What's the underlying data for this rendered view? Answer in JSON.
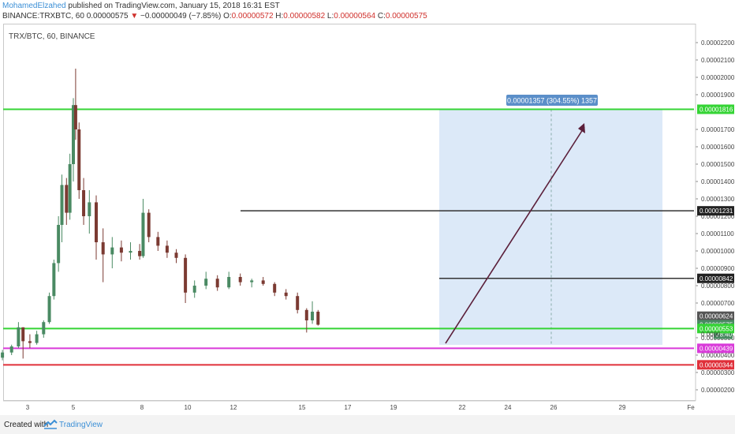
{
  "header": {
    "author": "MohamedElzahed",
    "published": "published on TradingView.com, January 15, 2018 16:31 EST",
    "ticker_line": "BINANCE:TRXBTC, 60",
    "last": "0.00000575",
    "change": "−0.00000049 (−7.85%)",
    "o_label": "O:",
    "o_value": "0.00000572",
    "h_label": "H:",
    "h_value": "0.00000582",
    "l_label": "L:",
    "l_value": "0.00000564",
    "c_label": "C:",
    "c_value": "0.00000575"
  },
  "symbol_label": "TRX/BTC, 60, BINANCE",
  "footer": {
    "created_with": "Created with",
    "brand": "TradingView"
  },
  "colors": {
    "up": "#4a8a63",
    "down": "#7b3a32",
    "green_line": "#35d435",
    "magenta_line": "#d93ad9",
    "red_line": "#e0303a",
    "dark_line": "#333333",
    "projection_fill": "#dce9f8",
    "arrow": "#5b1f3a"
  },
  "chart_data": {
    "type": "candlestick",
    "x_ticks": [
      "3",
      "5",
      "8",
      "10",
      "12",
      "15",
      "17",
      "19",
      "22",
      "24",
      "26",
      "29",
      "Fe"
    ],
    "y_ticks": [
      "0.00002200",
      "0.00002100",
      "0.00002000",
      "0.00001900",
      "0.00001700",
      "0.00001600",
      "0.00001500",
      "0.00001400",
      "0.00001300",
      "0.00001200",
      "0.00001100",
      "0.00001000",
      "0.00000900",
      "0.00000800",
      "0.00000700",
      "0.00000500",
      "0.00000400",
      "0.00000300",
      "0.00000200"
    ],
    "ylim": [
      1.5e-06,
      2.3e-06
    ],
    "price_tags": [
      {
        "value": "0.00001816",
        "color": "#35d435"
      },
      {
        "value": "0.00001231",
        "color": "#222222"
      },
      {
        "value": "0.00000842",
        "color": "#222222"
      },
      {
        "value": "0.00000624",
        "color": "#555555"
      },
      {
        "value": "0.00000575",
        "color": "#4a8a63"
      },
      {
        "value": "28:40",
        "color": "#4a8a63"
      },
      {
        "value": "0.00000553",
        "color": "#35d435"
      },
      {
        "value": "0.00000439",
        "color": "#d93ad9"
      },
      {
        "value": "0.00000344",
        "color": "#e0303a"
      }
    ],
    "partial_tick": "0.0000",
    "levels": [
      {
        "name": "resistance-top",
        "price": 1.816e-05,
        "color": "#35d435"
      },
      {
        "name": "resistance-mid",
        "price": 1.231e-05,
        "color": "#333333"
      },
      {
        "name": "resistance-low",
        "price": 8.42e-06,
        "color": "#333333"
      },
      {
        "name": "support-green",
        "price": 5.53e-06,
        "color": "#35d435"
      },
      {
        "name": "support-magenta",
        "price": 4.39e-06,
        "color": "#d93ad9"
      },
      {
        "name": "support-red",
        "price": 3.44e-06,
        "color": "#e0303a"
      }
    ],
    "measure_label": "0.00001357 (304.55%) 1357",
    "series": [
      {
        "day": 1.35,
        "o": 3.62e-06,
        "h": 3.92e-06,
        "l": 3.56e-06,
        "c": 3.85e-06
      },
      {
        "day": 1.9,
        "o": 3.85e-06,
        "h": 4.3e-06,
        "l": 3.7e-06,
        "c": 4.15e-06
      },
      {
        "day": 2.3,
        "o": 4.15e-06,
        "h": 4.6e-06,
        "l": 4e-06,
        "c": 4.5e-06
      },
      {
        "day": 2.6,
        "o": 4.5e-06,
        "h": 5.9e-06,
        "l": 4.4e-06,
        "c": 5.6e-06
      },
      {
        "day": 2.8,
        "o": 5.6e-06,
        "h": 5.6e-06,
        "l": 3.8e-06,
        "c": 4.8e-06
      },
      {
        "day": 3.1,
        "o": 4.8e-06,
        "h": 5.2e-06,
        "l": 4.4e-06,
        "c": 4.7e-06
      },
      {
        "day": 3.4,
        "o": 4.7e-06,
        "h": 5.4e-06,
        "l": 4.6e-06,
        "c": 5.2e-06
      },
      {
        "day": 3.7,
        "o": 5.2e-06,
        "h": 6e-06,
        "l": 5e-06,
        "c": 5.9e-06
      },
      {
        "day": 3.95,
        "o": 5.9e-06,
        "h": 7.6e-06,
        "l": 5.8e-06,
        "c": 7.4e-06
      },
      {
        "day": 4.15,
        "o": 7.4e-06,
        "h": 9.5e-06,
        "l": 7.2e-06,
        "c": 9.3e-06
      },
      {
        "day": 4.35,
        "o": 9.3e-06,
        "h": 1.2e-05,
        "l": 8.8e-06,
        "c": 1.15e-05
      },
      {
        "day": 4.5,
        "o": 1.15e-05,
        "h": 1.44e-05,
        "l": 1.05e-05,
        "c": 1.38e-05
      },
      {
        "day": 4.7,
        "o": 1.38e-05,
        "h": 1.42e-05,
        "l": 1.15e-05,
        "c": 1.22e-05
      },
      {
        "day": 4.85,
        "o": 1.22e-05,
        "h": 1.56e-05,
        "l": 1.18e-05,
        "c": 1.5e-05
      },
      {
        "day": 5.0,
        "o": 1.5e-05,
        "h": 1.88e-05,
        "l": 1.4e-05,
        "c": 1.84e-05
      },
      {
        "day": 5.1,
        "o": 1.84e-05,
        "h": 2.05e-05,
        "l": 1.64e-05,
        "c": 1.7e-05
      },
      {
        "day": 5.25,
        "o": 1.7e-05,
        "h": 1.74e-05,
        "l": 1.3e-05,
        "c": 1.35e-05
      },
      {
        "day": 5.45,
        "o": 1.35e-05,
        "h": 1.42e-05,
        "l": 1.15e-05,
        "c": 1.2e-05
      },
      {
        "day": 5.7,
        "o": 1.2e-05,
        "h": 1.35e-05,
        "l": 1.1e-05,
        "c": 1.28e-05
      },
      {
        "day": 6.0,
        "o": 1.28e-05,
        "h": 1.32e-05,
        "l": 9.5e-06,
        "c": 1.05e-05
      },
      {
        "day": 6.3,
        "o": 1.05e-05,
        "h": 1.13e-05,
        "l": 8.2e-06,
        "c": 9.8e-06
      },
      {
        "day": 6.7,
        "o": 9.8e-06,
        "h": 1.08e-05,
        "l": 9e-06,
        "c": 1.02e-05
      },
      {
        "day": 7.1,
        "o": 1.02e-05,
        "h": 1.06e-05,
        "l": 9.4e-06,
        "c": 9.9e-06
      },
      {
        "day": 7.5,
        "o": 9.9e-06,
        "h": 1.05e-05,
        "l": 9.5e-06,
        "c": 1e-05
      },
      {
        "day": 7.9,
        "o": 1e-05,
        "h": 1.04e-05,
        "l": 9.5e-06,
        "c": 9.7e-06
      },
      {
        "day": 8.05,
        "o": 9.7e-06,
        "h": 1.3e-05,
        "l": 9.6e-06,
        "c": 1.22e-05
      },
      {
        "day": 8.3,
        "o": 1.22e-05,
        "h": 1.24e-05,
        "l": 1.05e-05,
        "c": 1.08e-05
      },
      {
        "day": 8.7,
        "o": 1.08e-05,
        "h": 1.11e-05,
        "l": 1e-05,
        "c": 1.03e-05
      },
      {
        "day": 9.1,
        "o": 1.03e-05,
        "h": 1.06e-05,
        "l": 9.6e-06,
        "c": 9.9e-06
      },
      {
        "day": 9.5,
        "o": 9.9e-06,
        "h": 1.01e-05,
        "l": 9.3e-06,
        "c": 9.6e-06
      },
      {
        "day": 9.9,
        "o": 9.6e-06,
        "h": 9.8e-06,
        "l": 7e-06,
        "c": 7.6e-06
      },
      {
        "day": 10.3,
        "o": 7.6e-06,
        "h": 8.3e-06,
        "l": 7.3e-06,
        "c": 8e-06
      },
      {
        "day": 10.8,
        "o": 8e-06,
        "h": 8.8e-06,
        "l": 7.8e-06,
        "c": 8.4e-06
      },
      {
        "day": 11.3,
        "o": 8.4e-06,
        "h": 8.6e-06,
        "l": 7.7e-06,
        "c": 7.9e-06
      },
      {
        "day": 11.8,
        "o": 7.9e-06,
        "h": 8.8e-06,
        "l": 7.8e-06,
        "c": 8.5e-06
      },
      {
        "day": 12.3,
        "o": 8.5e-06,
        "h": 8.7e-06,
        "l": 8e-06,
        "c": 8.2e-06
      },
      {
        "day": 12.8,
        "o": 8.2e-06,
        "h": 8.4e-06,
        "l": 7.9e-06,
        "c": 8.3e-06
      },
      {
        "day": 13.3,
        "o": 8.3e-06,
        "h": 8.5e-06,
        "l": 8e-06,
        "c": 8.1e-06
      },
      {
        "day": 13.8,
        "o": 8.1e-06,
        "h": 8.2e-06,
        "l": 7.4e-06,
        "c": 7.6e-06
      },
      {
        "day": 14.3,
        "o": 7.6e-06,
        "h": 7.8e-06,
        "l": 7.2e-06,
        "c": 7.4e-06
      },
      {
        "day": 14.8,
        "o": 7.4e-06,
        "h": 7.6e-06,
        "l": 6.4e-06,
        "c": 6.6e-06
      },
      {
        "day": 15.2,
        "o": 6.6e-06,
        "h": 6.7e-06,
        "l": 5.3e-06,
        "c": 6e-06
      },
      {
        "day": 15.45,
        "o": 6e-06,
        "h": 7.1e-06,
        "l": 5.8e-06,
        "c": 6.5e-06
      },
      {
        "day": 15.7,
        "o": 6.5e-06,
        "h": 6.6e-06,
        "l": 5.7e-06,
        "c": 5.75e-06
      }
    ]
  }
}
